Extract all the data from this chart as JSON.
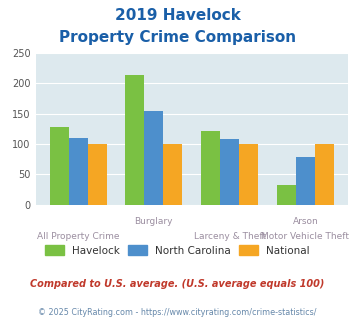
{
  "title_line1": "2019 Havelock",
  "title_line2": "Property Crime Comparison",
  "top_labels": [
    "",
    "Burglary",
    "",
    "Arson"
  ],
  "bottom_labels": [
    "All Property Crime",
    "",
    "Larceny & Theft",
    "Motor Vehicle Theft"
  ],
  "havelock": [
    128,
    213,
    121,
    33
  ],
  "north_carolina": [
    110,
    154,
    108,
    78
  ],
  "national": [
    100,
    100,
    100,
    100
  ],
  "havelock_color": "#7ac143",
  "nc_color": "#4d8fcc",
  "national_color": "#f5a623",
  "ylim": [
    0,
    250
  ],
  "yticks": [
    0,
    50,
    100,
    150,
    200,
    250
  ],
  "bg_color": "#dde9ee",
  "title_color": "#1a5fa8",
  "axis_label_color": "#9b8ea0",
  "legend_label_color": "#333333",
  "footnote1": "Compared to U.S. average. (U.S. average equals 100)",
  "footnote2": "© 2025 CityRating.com - https://www.cityrating.com/crime-statistics/",
  "footnote1_color": "#c0392b",
  "footnote2_color": "#6688aa",
  "bar_width": 0.25,
  "group_positions": [
    0,
    1,
    2,
    3
  ]
}
